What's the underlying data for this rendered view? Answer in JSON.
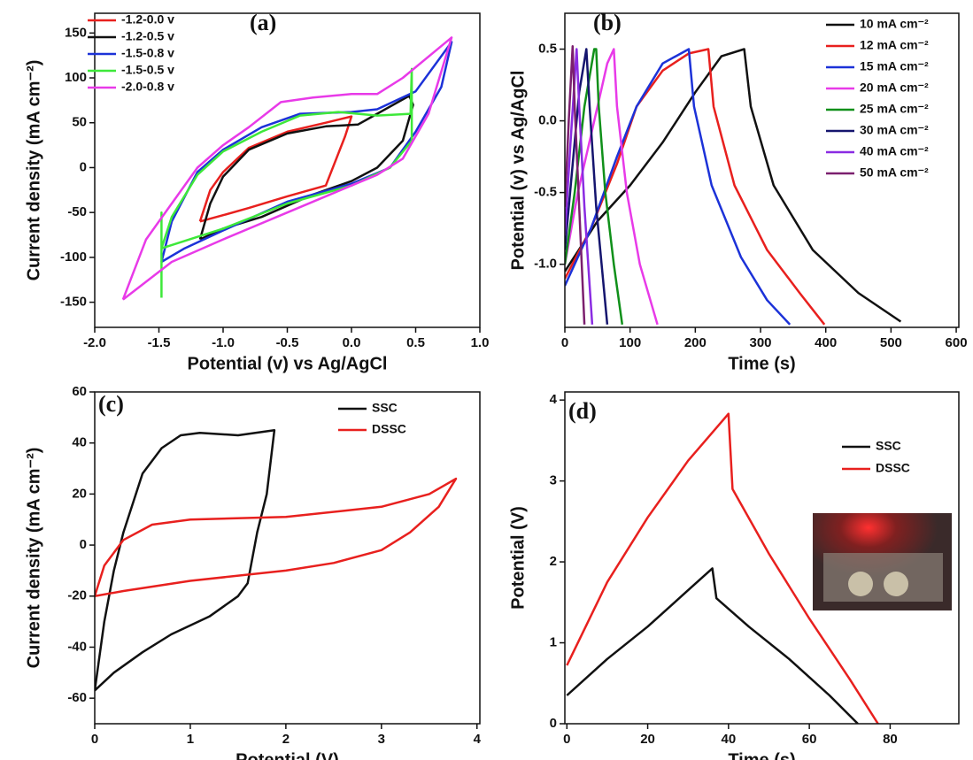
{
  "chart_data": [
    {
      "type": "line",
      "label": "(a)",
      "x_label": "Potential (v) vs Ag/AgCl",
      "y_label": "Current density (mA cm⁻²)",
      "xlim": [
        -2.0,
        1.0
      ],
      "ylim": [
        -178,
        172
      ],
      "legend": "upper left",
      "xticks": [
        {
          "value": -2.0,
          "label": "-2.0"
        },
        -1.5,
        {
          "value": -1.0,
          "label": "-1.0"
        },
        -0.5,
        {
          "value": 0.0,
          "label": "0.0"
        },
        0.5,
        {
          "value": 1.0,
          "label": "1.0"
        }
      ],
      "yticks": [
        150,
        100,
        50,
        0,
        -50,
        -100,
        -150
      ],
      "series": [
        {
          "name": "-1.2-0.0 v",
          "color": "#e8201e",
          "x": [
            -1.18,
            -1.1,
            -1.0,
            -0.8,
            -0.5,
            -0.2,
            0.0,
            -0.05,
            -0.2,
            -0.5,
            -0.8,
            -1.0,
            -1.18
          ],
          "values": [
            -60,
            -25,
            -5,
            22,
            40,
            50,
            57,
            35,
            -20,
            -32,
            -45,
            -53,
            -60
          ]
        },
        {
          "name": "-1.2-0.5 v",
          "color": "#111111",
          "x": [
            -1.18,
            -1.1,
            -1.0,
            -0.8,
            -0.5,
            -0.2,
            0.05,
            0.2,
            0.45,
            0.48,
            0.4,
            0.2,
            0.0,
            -0.3,
            -0.7,
            -1.0,
            -1.18
          ],
          "values": [
            -80,
            -40,
            -10,
            20,
            38,
            46,
            48,
            60,
            80,
            70,
            30,
            0,
            -15,
            -30,
            -55,
            -68,
            -80
          ]
        },
        {
          "name": "-1.5-0.8 v",
          "color": "#1c32d8",
          "x": [
            -1.48,
            -1.4,
            -1.2,
            -1.0,
            -0.7,
            -0.4,
            0.0,
            0.2,
            0.5,
            0.78,
            0.7,
            0.5,
            0.3,
            0.0,
            -0.5,
            -1.0,
            -1.3,
            -1.48
          ],
          "values": [
            -105,
            -60,
            -5,
            20,
            45,
            60,
            62,
            65,
            85,
            140,
            90,
            40,
            0,
            -18,
            -38,
            -70,
            -90,
            -105
          ]
        },
        {
          "name": "-1.5-0.5 v",
          "color": "#3ee83a",
          "x": [
            -1.48,
            -1.4,
            -1.2,
            -1.0,
            -0.7,
            -0.4,
            -0.1,
            0.2,
            0.46,
            0.47,
            0.47,
            0.3,
            0.0,
            -0.5,
            -1.0,
            -1.48,
            -1.48,
            -1.48
          ],
          "values": [
            -90,
            -55,
            -8,
            18,
            40,
            58,
            62,
            58,
            60,
            110,
            30,
            0,
            -20,
            -40,
            -68,
            -90,
            -50,
            -145
          ]
        },
        {
          "name": "-2.0-0.8 v",
          "color": "#e83ae8",
          "x": [
            -1.78,
            -1.6,
            -1.4,
            -1.2,
            -1.0,
            -0.8,
            -0.55,
            -0.3,
            0.0,
            0.2,
            0.4,
            0.78,
            0.6,
            0.4,
            0.2,
            0.0,
            -0.5,
            -1.0,
            -1.4,
            -1.78
          ],
          "values": [
            -147,
            -80,
            -40,
            0,
            25,
            45,
            73,
            78,
            82,
            82,
            100,
            145,
            60,
            10,
            -8,
            -20,
            -50,
            -80,
            -105,
            -147
          ]
        }
      ]
    },
    {
      "type": "line",
      "label": "(b)",
      "x_label": "Time (s)",
      "y_label": "Potential (v) vs Ag/AgCl",
      "xlim": [
        0,
        604
      ],
      "ylim": [
        -1.44,
        0.75
      ],
      "legend": "upper right",
      "xticks": [
        0,
        100,
        200,
        300,
        400,
        500,
        600
      ],
      "yticks": [
        0.5,
        {
          "value": 0.0,
          "label": "0.0"
        },
        -0.5,
        {
          "value": -1.0,
          "label": "-1.0"
        }
      ],
      "series": [
        {
          "name": "10 mA cm⁻²",
          "color": "#111111",
          "x": [
            0,
            50,
            100,
            150,
            200,
            240,
            275,
            285,
            320,
            380,
            450,
            515
          ],
          "values": [
            -1.05,
            -0.7,
            -0.45,
            -0.15,
            0.2,
            0.45,
            0.5,
            0.1,
            -0.45,
            -0.9,
            -1.2,
            -1.4
          ]
        },
        {
          "name": "12 mA cm⁻²",
          "color": "#e8201e",
          "x": [
            0,
            40,
            80,
            110,
            150,
            190,
            220,
            228,
            260,
            310,
            360,
            398
          ],
          "values": [
            -1.1,
            -0.75,
            -0.3,
            0.1,
            0.35,
            0.47,
            0.5,
            0.1,
            -0.45,
            -0.9,
            -1.2,
            -1.42
          ]
        },
        {
          "name": "15 mA cm⁻²",
          "color": "#1c32d8",
          "x": [
            0,
            40,
            80,
            110,
            150,
            190,
            198,
            225,
            270,
            310,
            345
          ],
          "values": [
            -1.15,
            -0.75,
            -0.25,
            0.1,
            0.4,
            0.5,
            0.1,
            -0.45,
            -0.95,
            -1.25,
            -1.42
          ]
        },
        {
          "name": "20 mA cm⁻²",
          "color": "#e83ae8",
          "x": [
            0,
            20,
            45,
            65,
            75,
            80,
            95,
            115,
            142
          ],
          "values": [
            -1.0,
            -0.5,
            0.0,
            0.4,
            0.5,
            0.1,
            -0.5,
            -1.0,
            -1.42
          ]
        },
        {
          "name": "25 mA cm⁻²",
          "color": "#10901a",
          "x": [
            0,
            15,
            30,
            45,
            48,
            52,
            62,
            75,
            88
          ],
          "values": [
            -1.0,
            -0.5,
            0.1,
            0.5,
            0.5,
            0.1,
            -0.5,
            -1.0,
            -1.42
          ]
        },
        {
          "name": "30 mA cm⁻²",
          "color": "#15156e",
          "x": [
            0,
            10,
            22,
            33,
            38,
            48,
            65
          ],
          "values": [
            -0.9,
            -0.4,
            0.2,
            0.5,
            0.1,
            -0.6,
            -1.42
          ]
        },
        {
          "name": "40 mA cm⁻²",
          "color": "#8a2be2",
          "x": [
            0,
            8,
            18,
            22,
            30,
            42
          ],
          "values": [
            -0.8,
            -0.2,
            0.5,
            0.1,
            -0.6,
            -1.42
          ]
        },
        {
          "name": "50 mA cm⁻²",
          "color": "#7b1f6e",
          "x": [
            0,
            6,
            12,
            15,
            22,
            30
          ],
          "values": [
            -0.6,
            0,
            0.52,
            0.1,
            -0.6,
            -1.42
          ]
        }
      ]
    },
    {
      "type": "line",
      "label": "(c)",
      "x_label": "Potential (V)",
      "y_label": "Current density (mA cm⁻²)",
      "xlim": [
        0,
        4.03
      ],
      "ylim": [
        -70,
        60
      ],
      "legend": "upper right",
      "xticks": [
        0,
        1,
        2,
        3,
        4
      ],
      "yticks": [
        60,
        40,
        20,
        0,
        -20,
        -40,
        -60
      ],
      "series": [
        {
          "name": "SSC",
          "color": "#111111",
          "x": [
            0,
            0.1,
            0.2,
            0.3,
            0.5,
            0.7,
            0.9,
            1.1,
            1.5,
            1.88,
            1.8,
            1.7,
            1.6,
            1.5,
            1.2,
            0.8,
            0.5,
            0.2,
            0
          ],
          "values": [
            -57,
            -30,
            -10,
            5,
            28,
            38,
            43,
            44,
            43,
            45,
            20,
            5,
            -15,
            -20,
            -28,
            -35,
            -42,
            -50,
            -57
          ]
        },
        {
          "name": "DSSC",
          "color": "#e8201e",
          "x": [
            0,
            0.1,
            0.3,
            0.6,
            1.0,
            2.0,
            3.0,
            3.5,
            3.78,
            3.6,
            3.3,
            3.0,
            2.5,
            2.0,
            1.0,
            0.3,
            0
          ],
          "values": [
            -20,
            -8,
            2,
            8,
            10,
            11,
            15,
            20,
            26,
            15,
            5,
            -2,
            -7,
            -10,
            -14,
            -18,
            -20
          ]
        }
      ]
    },
    {
      "type": "line",
      "label": "(d)",
      "x_label": "Time (s)",
      "y_label": "Potential (V)",
      "xlim": [
        -0.5,
        97
      ],
      "ylim": [
        0,
        4.1
      ],
      "legend": "right",
      "xticks": [
        0,
        20,
        40,
        60,
        80
      ],
      "yticks": [
        0,
        1,
        2,
        3,
        4
      ],
      "series": [
        {
          "name": "SSC",
          "color": "#111111",
          "x": [
            0,
            10,
            20,
            30,
            36,
            37,
            45,
            55,
            65,
            72
          ],
          "values": [
            0.35,
            0.8,
            1.2,
            1.65,
            1.92,
            1.55,
            1.2,
            0.8,
            0.35,
            0
          ]
        },
        {
          "name": "DSSC",
          "color": "#e8201e",
          "x": [
            0,
            10,
            20,
            30,
            40,
            41,
            50,
            60,
            70,
            77
          ],
          "values": [
            0.72,
            1.75,
            2.55,
            3.25,
            3.83,
            2.9,
            2.1,
            1.3,
            0.55,
            0
          ]
        }
      ]
    }
  ]
}
